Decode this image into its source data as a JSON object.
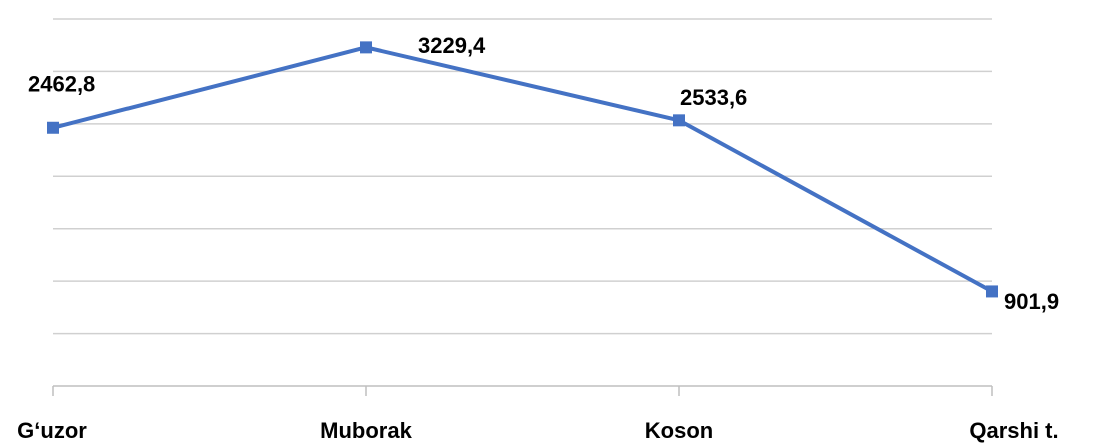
{
  "chart_data": {
    "type": "line",
    "categories": [
      "G‘uzor",
      "Muborak",
      "Koson",
      "Qarshi t."
    ],
    "series": [
      {
        "color": "#4472c4",
        "values": [
          2462.8,
          3229.4,
          2533.6,
          901.9
        ],
        "value_labels": [
          "2462,8",
          "3229,4",
          "2533,6",
          "901,9"
        ]
      }
    ],
    "ylim": [
      0,
      3500
    ],
    "yticks": [
      0,
      500,
      1000,
      1500,
      2000,
      2500,
      3000,
      3500
    ],
    "grid": true
  }
}
